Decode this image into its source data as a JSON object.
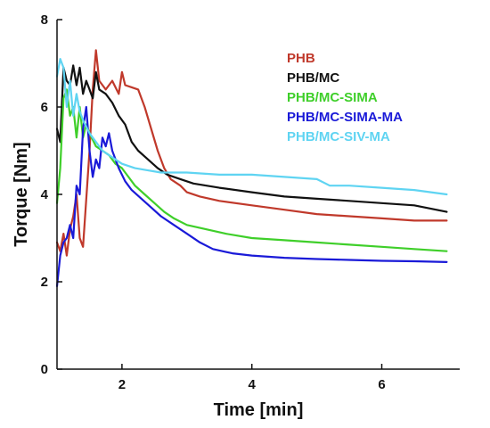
{
  "chart_data": {
    "type": "line",
    "xlabel": "Time [min]",
    "ylabel": "Torque [Nm]",
    "xlim": [
      1.0,
      7.2
    ],
    "ylim": [
      0,
      8
    ],
    "x_ticks": [
      2,
      4,
      6
    ],
    "y_ticks": [
      0,
      2,
      4,
      6,
      8
    ],
    "grid": false,
    "legend_position": "top-right",
    "series": [
      {
        "name": "PHB",
        "color": "#c0392b",
        "points": [
          [
            1.0,
            2.9
          ],
          [
            1.05,
            2.7
          ],
          [
            1.1,
            3.1
          ],
          [
            1.15,
            2.6
          ],
          [
            1.2,
            3.2
          ],
          [
            1.25,
            3.5
          ],
          [
            1.3,
            4.0
          ],
          [
            1.35,
            3.0
          ],
          [
            1.4,
            2.8
          ],
          [
            1.5,
            5.0
          ],
          [
            1.55,
            6.4
          ],
          [
            1.6,
            7.3
          ],
          [
            1.65,
            6.6
          ],
          [
            1.75,
            6.4
          ],
          [
            1.85,
            6.6
          ],
          [
            1.95,
            6.3
          ],
          [
            2.0,
            6.8
          ],
          [
            2.05,
            6.5
          ],
          [
            2.15,
            6.45
          ],
          [
            2.25,
            6.4
          ],
          [
            2.35,
            6.0
          ],
          [
            2.45,
            5.5
          ],
          [
            2.55,
            5.0
          ],
          [
            2.65,
            4.6
          ],
          [
            2.75,
            4.35
          ],
          [
            2.9,
            4.2
          ],
          [
            3.0,
            4.05
          ],
          [
            3.2,
            3.95
          ],
          [
            3.5,
            3.85
          ],
          [
            4.0,
            3.75
          ],
          [
            4.5,
            3.65
          ],
          [
            5.0,
            3.55
          ],
          [
            5.5,
            3.5
          ],
          [
            6.0,
            3.45
          ],
          [
            6.5,
            3.4
          ],
          [
            7.0,
            3.4
          ]
        ]
      },
      {
        "name": "PHB/MC",
        "color": "#111111",
        "points": [
          [
            1.0,
            5.5
          ],
          [
            1.05,
            5.2
          ],
          [
            1.1,
            6.9
          ],
          [
            1.15,
            6.6
          ],
          [
            1.2,
            6.5
          ],
          [
            1.25,
            6.95
          ],
          [
            1.3,
            6.5
          ],
          [
            1.35,
            6.9
          ],
          [
            1.4,
            6.3
          ],
          [
            1.45,
            6.6
          ],
          [
            1.5,
            6.4
          ],
          [
            1.55,
            6.2
          ],
          [
            1.6,
            6.8
          ],
          [
            1.65,
            6.4
          ],
          [
            1.75,
            6.3
          ],
          [
            1.85,
            6.1
          ],
          [
            1.95,
            5.8
          ],
          [
            2.05,
            5.6
          ],
          [
            2.15,
            5.2
          ],
          [
            2.25,
            5.0
          ],
          [
            2.4,
            4.8
          ],
          [
            2.55,
            4.6
          ],
          [
            2.7,
            4.45
          ],
          [
            2.9,
            4.35
          ],
          [
            3.1,
            4.25
          ],
          [
            3.5,
            4.15
          ],
          [
            4.0,
            4.05
          ],
          [
            4.5,
            3.95
          ],
          [
            5.0,
            3.9
          ],
          [
            5.5,
            3.85
          ],
          [
            6.0,
            3.8
          ],
          [
            6.5,
            3.75
          ],
          [
            7.0,
            3.6
          ]
        ]
      },
      {
        "name": "PHB/MC-SIMA",
        "color": "#3fcf2a",
        "points": [
          [
            1.0,
            3.8
          ],
          [
            1.05,
            4.6
          ],
          [
            1.1,
            6.2
          ],
          [
            1.15,
            6.4
          ],
          [
            1.2,
            5.8
          ],
          [
            1.25,
            6.0
          ],
          [
            1.3,
            5.3
          ],
          [
            1.35,
            6.0
          ],
          [
            1.4,
            5.3
          ],
          [
            1.45,
            5.6
          ],
          [
            1.5,
            5.4
          ],
          [
            1.6,
            5.1
          ],
          [
            1.7,
            5.0
          ],
          [
            1.8,
            4.9
          ],
          [
            1.9,
            4.7
          ],
          [
            2.0,
            4.6
          ],
          [
            2.1,
            4.4
          ],
          [
            2.2,
            4.2
          ],
          [
            2.35,
            4.0
          ],
          [
            2.5,
            3.8
          ],
          [
            2.65,
            3.6
          ],
          [
            2.8,
            3.45
          ],
          [
            3.0,
            3.3
          ],
          [
            3.3,
            3.2
          ],
          [
            3.6,
            3.1
          ],
          [
            4.0,
            3.0
          ],
          [
            4.5,
            2.95
          ],
          [
            5.0,
            2.9
          ],
          [
            5.5,
            2.85
          ],
          [
            6.0,
            2.8
          ],
          [
            6.5,
            2.75
          ],
          [
            7.0,
            2.7
          ]
        ]
      },
      {
        "name": "PHB/MC-SIMA-MA",
        "color": "#1a1ad8",
        "points": [
          [
            1.0,
            1.9
          ],
          [
            1.05,
            2.6
          ],
          [
            1.1,
            2.9
          ],
          [
            1.15,
            3.0
          ],
          [
            1.2,
            3.3
          ],
          [
            1.25,
            3.0
          ],
          [
            1.3,
            4.2
          ],
          [
            1.35,
            4.0
          ],
          [
            1.4,
            5.5
          ],
          [
            1.45,
            6.0
          ],
          [
            1.5,
            5.0
          ],
          [
            1.55,
            4.4
          ],
          [
            1.6,
            4.8
          ],
          [
            1.65,
            4.6
          ],
          [
            1.7,
            5.3
          ],
          [
            1.75,
            5.1
          ],
          [
            1.8,
            5.4
          ],
          [
            1.85,
            5.0
          ],
          [
            1.95,
            4.6
          ],
          [
            2.05,
            4.3
          ],
          [
            2.15,
            4.1
          ],
          [
            2.3,
            3.9
          ],
          [
            2.45,
            3.7
          ],
          [
            2.6,
            3.5
          ],
          [
            2.8,
            3.3
          ],
          [
            3.0,
            3.1
          ],
          [
            3.2,
            2.9
          ],
          [
            3.4,
            2.75
          ],
          [
            3.7,
            2.65
          ],
          [
            4.0,
            2.6
          ],
          [
            4.5,
            2.55
          ],
          [
            5.0,
            2.52
          ],
          [
            5.5,
            2.5
          ],
          [
            6.0,
            2.48
          ],
          [
            6.5,
            2.47
          ],
          [
            7.0,
            2.45
          ]
        ]
      },
      {
        "name": "PHB/MC-SIV-MA",
        "color": "#5fd4f2",
        "points": [
          [
            1.0,
            6.7
          ],
          [
            1.05,
            7.1
          ],
          [
            1.1,
            6.9
          ],
          [
            1.15,
            6.0
          ],
          [
            1.2,
            6.6
          ],
          [
            1.25,
            5.8
          ],
          [
            1.3,
            6.3
          ],
          [
            1.35,
            5.9
          ],
          [
            1.4,
            5.7
          ],
          [
            1.5,
            5.4
          ],
          [
            1.6,
            5.2
          ],
          [
            1.7,
            5.0
          ],
          [
            1.8,
            4.9
          ],
          [
            1.9,
            4.8
          ],
          [
            2.0,
            4.7
          ],
          [
            2.2,
            4.6
          ],
          [
            2.4,
            4.55
          ],
          [
            2.6,
            4.5
          ],
          [
            2.8,
            4.5
          ],
          [
            3.0,
            4.5
          ],
          [
            3.5,
            4.45
          ],
          [
            4.0,
            4.45
          ],
          [
            4.5,
            4.4
          ],
          [
            5.0,
            4.35
          ],
          [
            5.2,
            4.2
          ],
          [
            5.5,
            4.2
          ],
          [
            6.0,
            4.15
          ],
          [
            6.5,
            4.1
          ],
          [
            7.0,
            4.0
          ]
        ]
      }
    ]
  }
}
